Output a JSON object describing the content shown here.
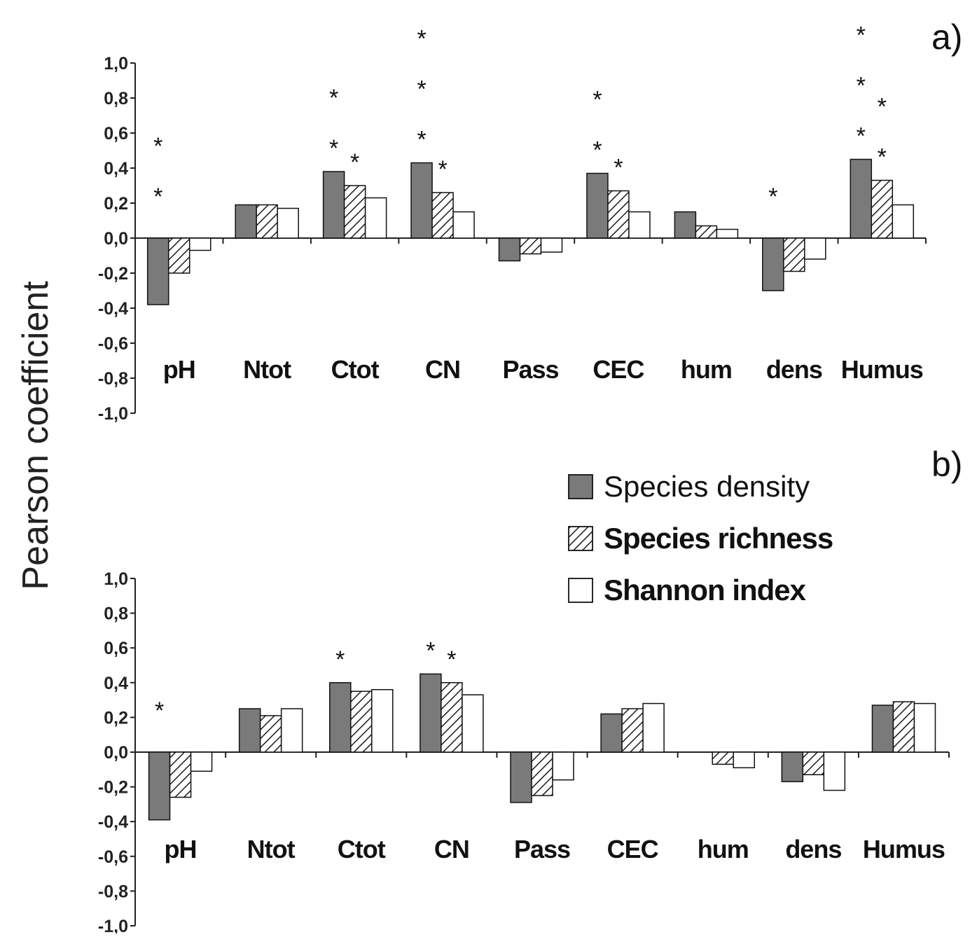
{
  "ylabel": "Pearson coefficient",
  "legend": {
    "placement": "right-middle",
    "items": [
      {
        "label": "Species density",
        "fill": "gray"
      },
      {
        "label": "Species richness",
        "fill": "hatch"
      },
      {
        "label": "Shannon index",
        "fill": "white"
      }
    ]
  },
  "colors": {
    "species_density": "#7a7a7a",
    "species_richness_hatch": "#1a1a1a",
    "shannon_index": "#ffffff",
    "axis": "#222222"
  },
  "chart_data": [
    {
      "type": "bar",
      "panel_label": "a)",
      "categories": [
        "pH",
        "Ntot",
        "Ctot",
        "CN",
        "Pass",
        "CEC",
        "hum",
        "dens",
        "Humus"
      ],
      "series": [
        {
          "name": "Species density",
          "values": [
            -0.38,
            0.19,
            0.38,
            0.43,
            -0.13,
            0.37,
            0.15,
            -0.3,
            0.45
          ]
        },
        {
          "name": "Species richness",
          "values": [
            -0.2,
            0.19,
            0.3,
            0.26,
            -0.09,
            0.27,
            0.07,
            -0.19,
            0.33
          ]
        },
        {
          "name": "Shannon index",
          "values": [
            -0.07,
            0.17,
            0.23,
            0.15,
            -0.08,
            0.15,
            0.05,
            -0.12,
            0.19
          ]
        }
      ],
      "significance": [
        {
          "category": "pH",
          "series": "Species density",
          "count": 2
        },
        {
          "category": "Ctot",
          "series": "Species density",
          "count": 2
        },
        {
          "category": "Ctot",
          "series": "Species richness",
          "count": 1
        },
        {
          "category": "CN",
          "series": "Species density",
          "count": 3
        },
        {
          "category": "CN",
          "series": "Species richness",
          "count": 1
        },
        {
          "category": "CEC",
          "series": "Species density",
          "count": 2
        },
        {
          "category": "CEC",
          "series": "Species richness",
          "count": 1
        },
        {
          "category": "dens",
          "series": "Species density",
          "count": 1
        },
        {
          "category": "Humus",
          "series": "Species density",
          "count": 3
        },
        {
          "category": "Humus",
          "series": "Species richness",
          "count": 2
        }
      ],
      "significance_symbol": "*",
      "yticks": [
        "1,0",
        "0,8",
        "0,6",
        "0,4",
        "0,2",
        "0,0",
        "-0,2",
        "-0,4",
        "-0,6",
        "-0,8",
        "-1,0"
      ],
      "ylim": [
        -1.0,
        1.0
      ],
      "grid": false
    },
    {
      "type": "bar",
      "panel_label": "b)",
      "categories": [
        "pH",
        "Ntot",
        "Ctot",
        "CN",
        "Pass",
        "CEC",
        "hum",
        "dens",
        "Humus"
      ],
      "series": [
        {
          "name": "Species density",
          "values": [
            -0.39,
            0.25,
            0.4,
            0.45,
            -0.29,
            0.22,
            0.0,
            -0.17,
            0.27
          ]
        },
        {
          "name": "Species richness",
          "values": [
            -0.26,
            0.21,
            0.35,
            0.4,
            -0.25,
            0.25,
            -0.07,
            -0.13,
            0.29
          ]
        },
        {
          "name": "Shannon index",
          "values": [
            -0.11,
            0.25,
            0.36,
            0.33,
            -0.16,
            0.28,
            -0.09,
            -0.22,
            0.28
          ]
        }
      ],
      "significance": [
        {
          "category": "pH",
          "series": "Species density",
          "count": 1
        },
        {
          "category": "Ctot",
          "series": "Species density",
          "count": 1
        },
        {
          "category": "CN",
          "series": "Species density",
          "count": 1
        },
        {
          "category": "CN",
          "series": "Species richness",
          "count": 1
        }
      ],
      "significance_symbol": "*",
      "yticks": [
        "1,0",
        "0,8",
        "0,6",
        "0,4",
        "0,2",
        "0,0",
        "-0,2",
        "-0,4",
        "-0,6",
        "-0,8",
        "-1,0"
      ],
      "ylim": [
        -1.0,
        1.0
      ],
      "grid": false
    }
  ]
}
